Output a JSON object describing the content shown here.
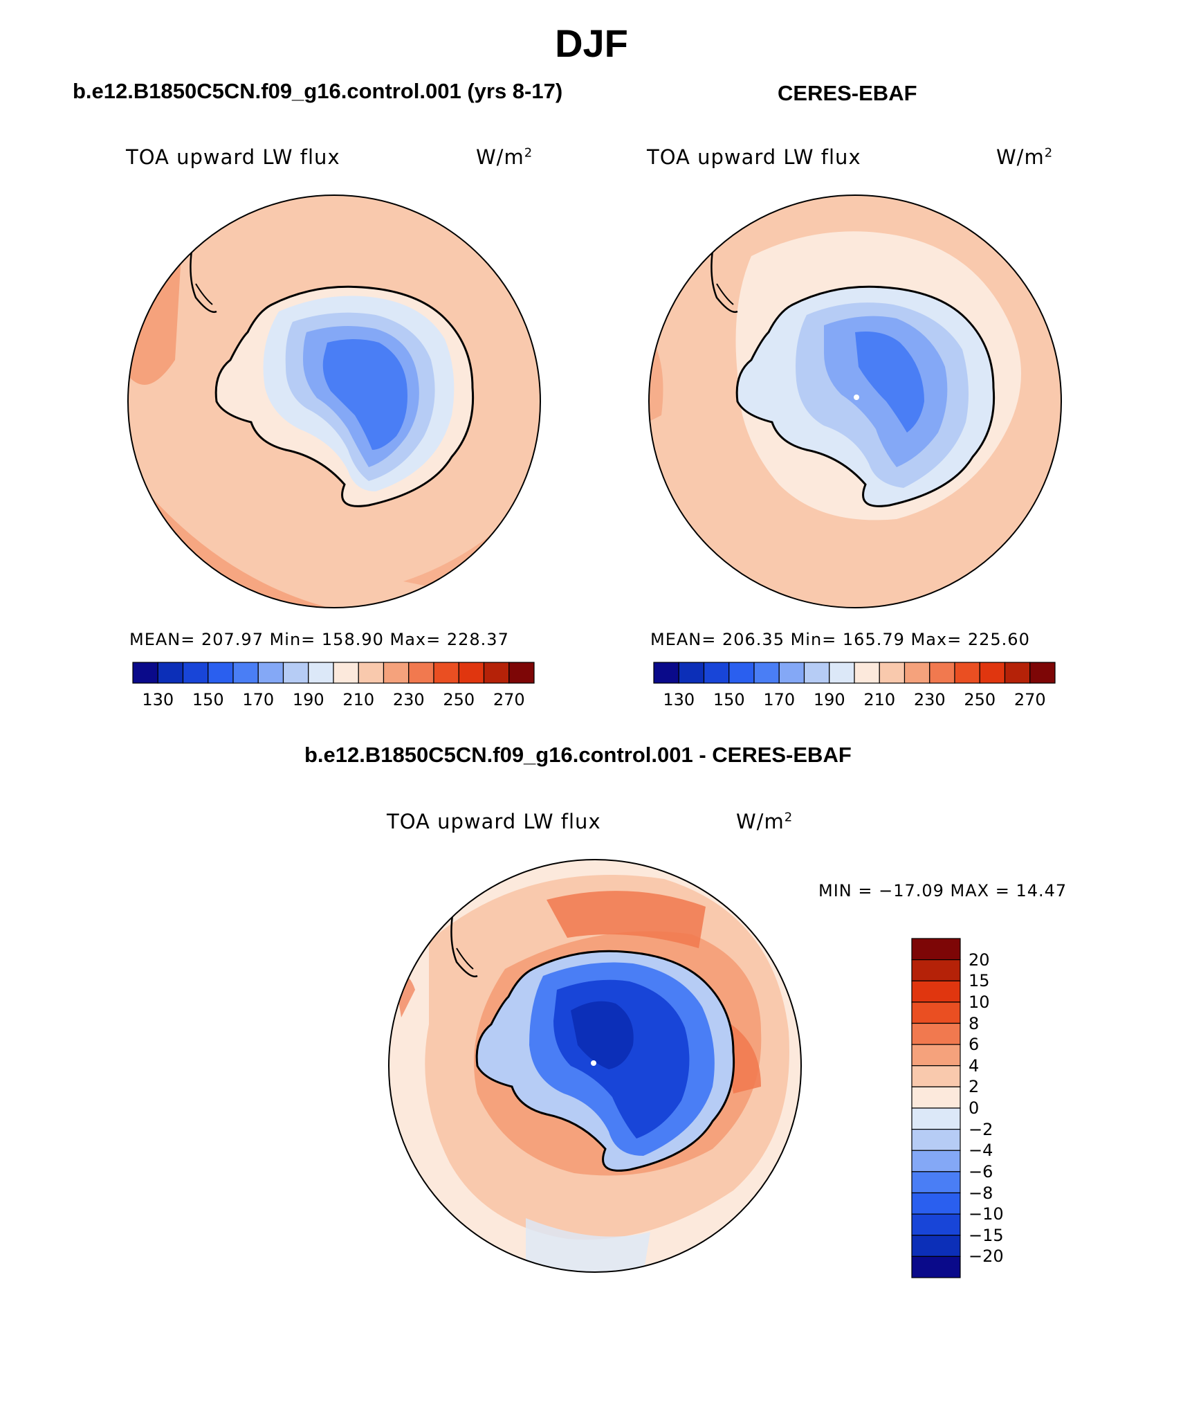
{
  "figure": {
    "title": "DJF"
  },
  "panels": [
    {
      "title": "b.e12.B1850C5CN.f09_g16.control.001 (yrs 8-17)",
      "variable": "TOA upward LW flux",
      "units": "W/m",
      "units_exponent": "2",
      "stats": "MEAN= 207.97   Min= 158.90   Max= 228.37",
      "colorbar_labels": [
        "130",
        "150",
        "170",
        "190",
        "210",
        "230",
        "250",
        "270"
      ]
    },
    {
      "title": "CERES-EBAF",
      "variable": "TOA upward LW flux",
      "units": "W/m",
      "units_exponent": "2",
      "stats": "MEAN= 206.35   Min= 165.79   Max= 225.60",
      "colorbar_labels": [
        "130",
        "150",
        "170",
        "190",
        "210",
        "230",
        "250",
        "270"
      ]
    }
  ],
  "difference": {
    "title": "b.e12.B1850C5CN.f09_g16.control.001 - CERES-EBAF",
    "variable": "TOA upward LW flux",
    "units": "W/m",
    "units_exponent": "2",
    "stats": "MIN = −17.09 MAX =   14.47",
    "colorbar_labels": [
      "20",
      "15",
      "10",
      "8",
      "6",
      "4",
      "2",
      "0",
      "−2",
      "−4",
      "−6",
      "−8",
      "−10",
      "−15",
      "−20"
    ]
  },
  "colors": {
    "flux_scale": [
      "#0a0a8a",
      "#0c2fb8",
      "#1845d8",
      "#2a5fef",
      "#4a7ef5",
      "#84a8f6",
      "#b6ccf5",
      "#dce8f8",
      "#fce9dc",
      "#f9c9ad",
      "#f5a27c",
      "#f1794f",
      "#ea4f22",
      "#e0360f",
      "#b52208",
      "#7d0606"
    ],
    "diff_scale": [
      "#7d0606",
      "#b52208",
      "#e0360f",
      "#ea4f22",
      "#f1794f",
      "#f5a27c",
      "#f9c9ad",
      "#fce9dc",
      "#dce8f8",
      "#b6ccf5",
      "#84a8f6",
      "#4a7ef5",
      "#2a5fef",
      "#1845d8",
      "#0c2fb8",
      "#0a0a8a"
    ],
    "ocean_base": "#f9c9ad",
    "ocean_light": "#fce9dc",
    "ocean_warm": "#f5a27c"
  }
}
